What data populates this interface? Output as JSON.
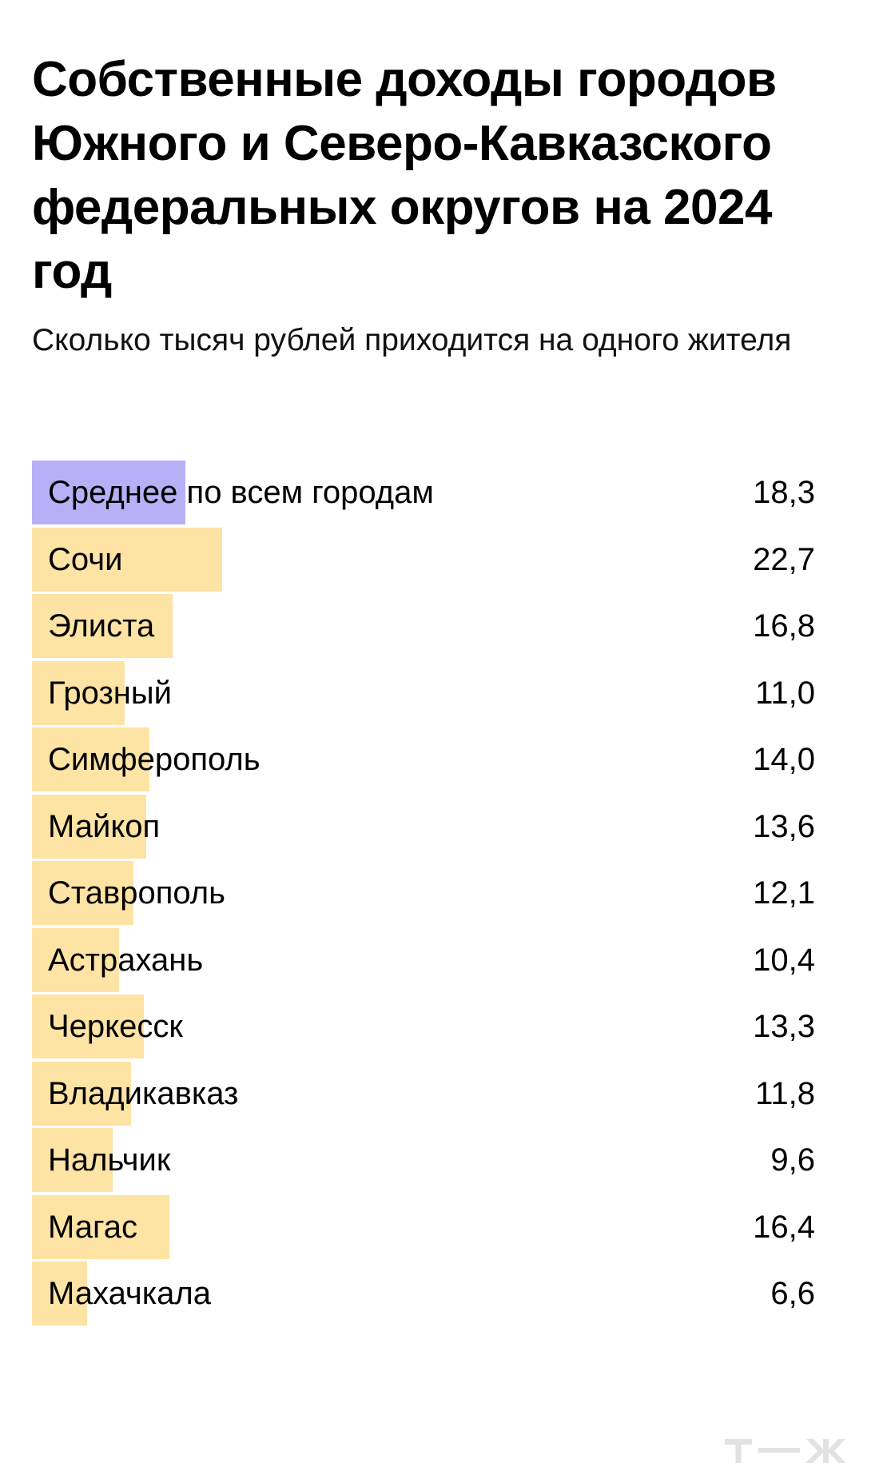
{
  "title": "Собственные доходы городов Южного и Северо-Кавказского федеральных округов на 2024 год",
  "subtitle": "Сколько тысяч рублей приходится на одного жителя",
  "brand": "т—ж",
  "colors": {
    "average_bar": "#b8b0f7",
    "city_bar": "#fde3a4",
    "logo": "#e2e2e2"
  },
  "chart_data": {
    "type": "bar",
    "orientation": "horizontal",
    "categories": [
      "Среднее по всем городам",
      "Сочи",
      "Элиста",
      "Грозный",
      "Симферополь",
      "Майкоп",
      "Ставрополь",
      "Астрахань",
      "Черкесск",
      "Владикавказ",
      "Нальчик",
      "Магас",
      "Махачкала"
    ],
    "values": [
      18.3,
      22.7,
      16.8,
      11.0,
      14.0,
      13.6,
      12.1,
      10.4,
      13.3,
      11.8,
      9.6,
      16.4,
      6.6
    ],
    "value_labels": [
      "18,3",
      "22,7",
      "16,8",
      "11,0",
      "14,0",
      "13,6",
      "12,1",
      "10,4",
      "13,3",
      "11,8",
      "9,6",
      "16,4",
      "6,6"
    ],
    "highlight_index": 0,
    "xlim": [
      0,
      100
    ],
    "grid": false,
    "legend": "none"
  }
}
